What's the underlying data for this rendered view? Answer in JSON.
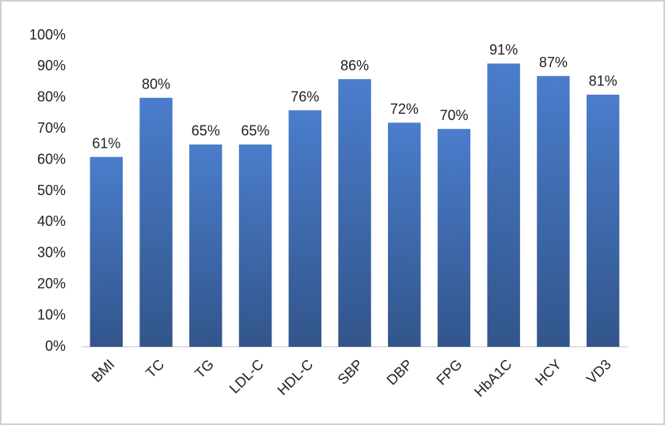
{
  "chart_data": {
    "type": "bar",
    "categories": [
      "BMI",
      "TC",
      "TG",
      "LDL-C",
      "HDL-C",
      "SBP",
      "DBP",
      "FPG",
      "HbA1C",
      "HCY",
      "VD3"
    ],
    "values": [
      61,
      80,
      65,
      65,
      76,
      86,
      72,
      70,
      91,
      87,
      81
    ],
    "value_labels": [
      "61%",
      "80%",
      "65%",
      "65%",
      "76%",
      "86%",
      "72%",
      "70%",
      "91%",
      "87%",
      "81%"
    ],
    "color": "#4a7dcc",
    "ylim": [
      0,
      100
    ],
    "yticks": [
      {
        "value": 0,
        "label": "0%"
      },
      {
        "value": 10,
        "label": "10%"
      },
      {
        "value": 20,
        "label": "20%"
      },
      {
        "value": 30,
        "label": "30%"
      },
      {
        "value": 40,
        "label": "40%"
      },
      {
        "value": 50,
        "label": "50%"
      },
      {
        "value": 60,
        "label": "60%"
      },
      {
        "value": 70,
        "label": "70%"
      },
      {
        "value": 80,
        "label": "80%"
      },
      {
        "value": 90,
        "label": "90%"
      },
      {
        "value": 100,
        "label": "100%"
      }
    ],
    "grid": false
  }
}
